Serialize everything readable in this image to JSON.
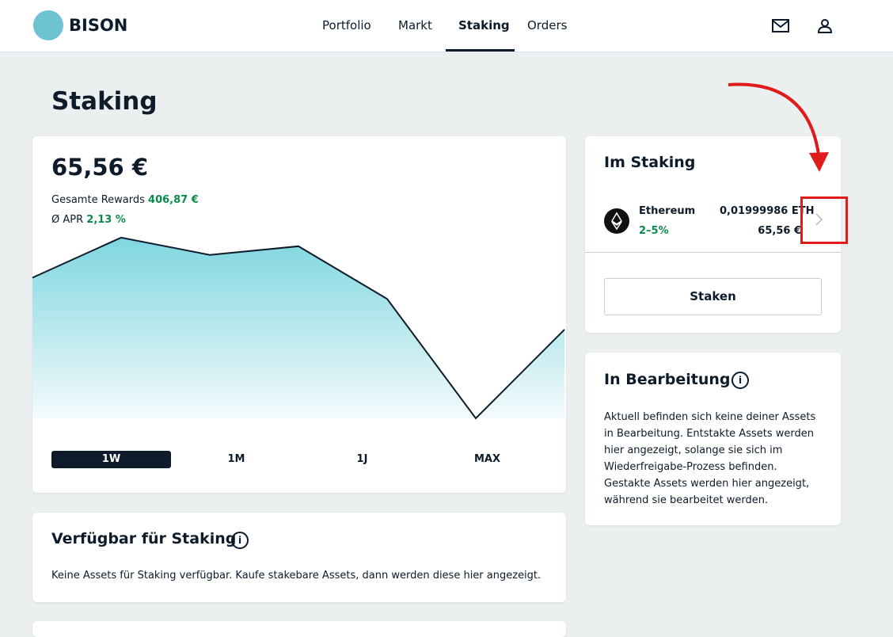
{
  "header": {
    "brand": "BISON",
    "nav": [
      "Portfolio",
      "Markt",
      "Staking",
      "Orders"
    ],
    "active_nav": 2
  },
  "page_title": "Staking",
  "overview": {
    "total": "65,56 €",
    "rewards_label": "Gesamte Rewards",
    "rewards_value": "406,87 €",
    "apr_label": "Ø APR",
    "apr_value": "2,13 %",
    "chart": {
      "type": "area",
      "values": [
        179,
        230,
        208,
        219,
        152,
        0,
        113
      ],
      "ylim": [
        0,
        240
      ],
      "color": "#0d1b2a"
    },
    "ranges": [
      "1W",
      "1M",
      "1J",
      "MAX"
    ],
    "active_range": 0
  },
  "im_staking": {
    "title": "Im Staking",
    "asset": {
      "name": "Ethereum",
      "rate": "2–5%",
      "amount": "0,01999986 ETH",
      "value": "65,56 €"
    },
    "button": "Staken"
  },
  "in_bearbeitung": {
    "title": "In Bearbeitung",
    "lines": [
      "Aktuell befinden sich keine deiner Assets",
      "in Bearbeitung. Entstakte Assets werden",
      "hier angezeigt, solange sie sich im",
      "Wiederfreigabe-Prozess befinden.",
      "Gestakte Assets werden hier angezeigt,",
      "während sie bearbeitet werden."
    ]
  },
  "verfuegbar": {
    "title": "Verfügbar für Staking",
    "text": "Keine Assets für Staking verfügbar. Kaufe stakebare Assets, dann werden diese hier angezeigt."
  }
}
